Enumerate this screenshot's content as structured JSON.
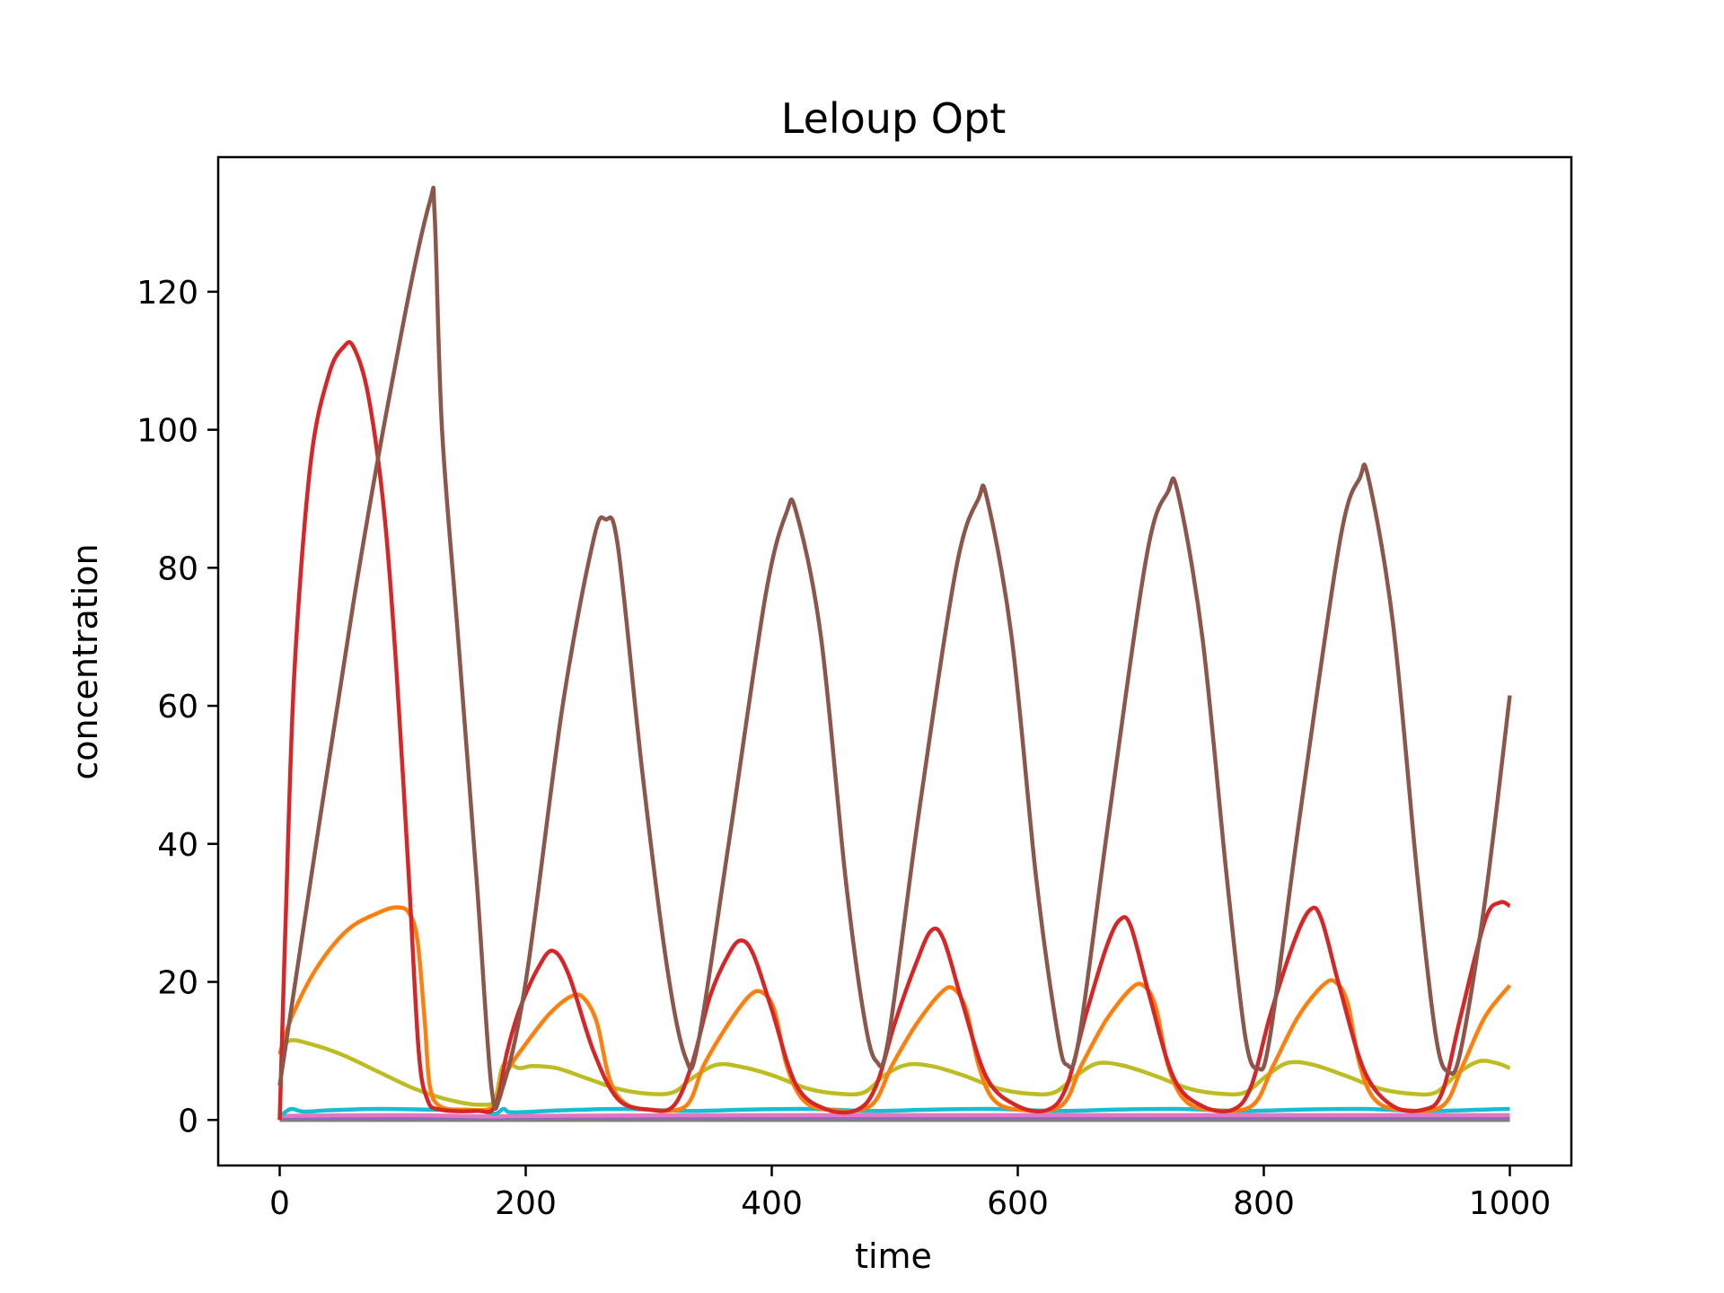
{
  "chart_data": {
    "type": "line",
    "title": "Leloup Opt",
    "xlabel": "time",
    "ylabel": "concentration",
    "xlim": [
      -50,
      1050
    ],
    "ylim": [
      -6.6,
      139.5
    ],
    "xticks": [
      0,
      200,
      400,
      600,
      800,
      1000
    ],
    "yticks": [
      0,
      20,
      40,
      60,
      80,
      100,
      120
    ],
    "grid": false,
    "legend": "none",
    "series": [
      {
        "color": "#8c564b",
        "points": [
          [
            0,
            5
          ],
          [
            60,
            75
          ],
          [
            100,
            115
          ],
          [
            122,
            133
          ],
          [
            126,
            131
          ],
          [
            132,
            100
          ],
          [
            145,
            70
          ],
          [
            160,
            35
          ],
          [
            172,
            5
          ],
          [
            180,
            4
          ],
          [
            200,
            20
          ],
          [
            230,
            60
          ],
          [
            255,
            84
          ],
          [
            265,
            87
          ],
          [
            275,
            83
          ],
          [
            295,
            50
          ],
          [
            315,
            22
          ],
          [
            330,
            9
          ],
          [
            340,
            11
          ],
          [
            365,
            40
          ],
          [
            395,
            76
          ],
          [
            412,
            88
          ],
          [
            420,
            88
          ],
          [
            440,
            70
          ],
          [
            460,
            35
          ],
          [
            475,
            15
          ],
          [
            485,
            8.5
          ],
          [
            495,
            12
          ],
          [
            520,
            45
          ],
          [
            550,
            80
          ],
          [
            568,
            90
          ],
          [
            575,
            90
          ],
          [
            595,
            70
          ],
          [
            615,
            35
          ],
          [
            632,
            13
          ],
          [
            640,
            8
          ],
          [
            650,
            12
          ],
          [
            675,
            45
          ],
          [
            705,
            82
          ],
          [
            722,
            91
          ],
          [
            730,
            91
          ],
          [
            750,
            70
          ],
          [
            770,
            35
          ],
          [
            785,
            12
          ],
          [
            795,
            7.5
          ],
          [
            805,
            12
          ],
          [
            830,
            45
          ],
          [
            862,
            84
          ],
          [
            878,
            93
          ],
          [
            885,
            93
          ],
          [
            905,
            72
          ],
          [
            925,
            35
          ],
          [
            940,
            12
          ],
          [
            950,
            7
          ],
          [
            960,
            10
          ],
          [
            980,
            32
          ],
          [
            1000,
            61.5
          ]
        ]
      },
      {
        "color": "#d62728",
        "points": [
          [
            0,
            0
          ],
          [
            5,
            30
          ],
          [
            12,
            65
          ],
          [
            25,
            95
          ],
          [
            40,
            108
          ],
          [
            52,
            112
          ],
          [
            60,
            112
          ],
          [
            72,
            105
          ],
          [
            85,
            88
          ],
          [
            95,
            65
          ],
          [
            105,
            35
          ],
          [
            113,
            10
          ],
          [
            120,
            3
          ],
          [
            130,
            1.5
          ],
          [
            160,
            1.3
          ],
          [
            175,
            2
          ],
          [
            185,
            10
          ],
          [
            195,
            16
          ],
          [
            210,
            22
          ],
          [
            222,
            24.5
          ],
          [
            235,
            21
          ],
          [
            255,
            10
          ],
          [
            275,
            3
          ],
          [
            300,
            1.5
          ],
          [
            320,
            2
          ],
          [
            335,
            8
          ],
          [
            350,
            18
          ],
          [
            365,
            24
          ],
          [
            375,
            26
          ],
          [
            385,
            24
          ],
          [
            400,
            16
          ],
          [
            420,
            5
          ],
          [
            445,
            1.5
          ],
          [
            470,
            1.5
          ],
          [
            485,
            5
          ],
          [
            500,
            14
          ],
          [
            518,
            23
          ],
          [
            530,
            27.5
          ],
          [
            540,
            26
          ],
          [
            555,
            17
          ],
          [
            575,
            6
          ],
          [
            600,
            2
          ],
          [
            625,
            1.5
          ],
          [
            640,
            5
          ],
          [
            655,
            15
          ],
          [
            672,
            25
          ],
          [
            683,
            29
          ],
          [
            692,
            28
          ],
          [
            707,
            18
          ],
          [
            727,
            6
          ],
          [
            750,
            2
          ],
          [
            775,
            1.5
          ],
          [
            790,
            5
          ],
          [
            805,
            15
          ],
          [
            825,
            26
          ],
          [
            838,
            30.5
          ],
          [
            847,
            29
          ],
          [
            862,
            19
          ],
          [
            882,
            7
          ],
          [
            905,
            2
          ],
          [
            930,
            1.5
          ],
          [
            945,
            4
          ],
          [
            960,
            15
          ],
          [
            980,
            29
          ],
          [
            992,
            31.5
          ],
          [
            1000,
            31
          ]
        ]
      },
      {
        "color": "#ff7f0e",
        "points": [
          [
            0,
            9.5
          ],
          [
            10,
            15
          ],
          [
            30,
            22
          ],
          [
            55,
            27.5
          ],
          [
            80,
            30
          ],
          [
            95,
            30.8
          ],
          [
            105,
            30
          ],
          [
            112,
            26
          ],
          [
            118,
            14
          ],
          [
            122,
            5
          ],
          [
            130,
            2
          ],
          [
            150,
            1.5
          ],
          [
            175,
            2
          ],
          [
            185,
            7
          ],
          [
            200,
            11
          ],
          [
            220,
            15.5
          ],
          [
            238,
            18
          ],
          [
            248,
            17.5
          ],
          [
            258,
            14
          ],
          [
            268,
            6
          ],
          [
            280,
            2.5
          ],
          [
            300,
            1.5
          ],
          [
            330,
            2
          ],
          [
            345,
            8
          ],
          [
            365,
            14
          ],
          [
            382,
            18
          ],
          [
            392,
            18.5
          ],
          [
            402,
            16
          ],
          [
            412,
            8
          ],
          [
            425,
            3
          ],
          [
            445,
            1.5
          ],
          [
            480,
            2
          ],
          [
            498,
            8
          ],
          [
            518,
            14
          ],
          [
            538,
            18.5
          ],
          [
            548,
            19
          ],
          [
            558,
            16
          ],
          [
            568,
            8
          ],
          [
            580,
            3
          ],
          [
            600,
            1.5
          ],
          [
            635,
            2
          ],
          [
            652,
            8
          ],
          [
            672,
            14.5
          ],
          [
            692,
            19
          ],
          [
            702,
            19.5
          ],
          [
            712,
            16.5
          ],
          [
            722,
            8
          ],
          [
            735,
            3
          ],
          [
            755,
            1.5
          ],
          [
            790,
            2
          ],
          [
            808,
            8
          ],
          [
            828,
            15
          ],
          [
            848,
            19.5
          ],
          [
            858,
            20
          ],
          [
            868,
            17
          ],
          [
            878,
            8
          ],
          [
            890,
            3
          ],
          [
            910,
            1.5
          ],
          [
            945,
            2
          ],
          [
            962,
            8
          ],
          [
            980,
            15
          ],
          [
            1000,
            19.5
          ]
        ]
      },
      {
        "color": "#bcbd22",
        "points": [
          [
            0,
            9.5
          ],
          [
            8,
            11.5
          ],
          [
            25,
            11
          ],
          [
            50,
            9.5
          ],
          [
            80,
            7
          ],
          [
            110,
            4.5
          ],
          [
            140,
            2.8
          ],
          [
            165,
            2.2
          ],
          [
            175,
            3
          ],
          [
            182,
            8
          ],
          [
            195,
            7.5
          ],
          [
            205,
            7.8
          ],
          [
            225,
            7.5
          ],
          [
            250,
            6
          ],
          [
            275,
            4.5
          ],
          [
            300,
            3.8
          ],
          [
            320,
            4
          ],
          [
            335,
            6
          ],
          [
            355,
            8
          ],
          [
            375,
            7.7
          ],
          [
            400,
            6.5
          ],
          [
            430,
            4.5
          ],
          [
            455,
            3.8
          ],
          [
            475,
            4
          ],
          [
            492,
            6.5
          ],
          [
            510,
            8
          ],
          [
            530,
            7.8
          ],
          [
            555,
            6.5
          ],
          [
            585,
            4.5
          ],
          [
            610,
            3.8
          ],
          [
            630,
            4
          ],
          [
            648,
            6.5
          ],
          [
            665,
            8.2
          ],
          [
            685,
            7.9
          ],
          [
            710,
            6.5
          ],
          [
            740,
            4.5
          ],
          [
            765,
            3.8
          ],
          [
            785,
            4
          ],
          [
            803,
            6.5
          ],
          [
            820,
            8.3
          ],
          [
            840,
            8
          ],
          [
            865,
            6.5
          ],
          [
            895,
            4.5
          ],
          [
            920,
            3.8
          ],
          [
            940,
            4
          ],
          [
            958,
            6.8
          ],
          [
            975,
            8.5
          ],
          [
            990,
            8.2
          ],
          [
            1000,
            7.5
          ]
        ]
      },
      {
        "color": "#17becf",
        "points": [
          [
            0,
            0.5
          ],
          [
            5,
            1.2
          ],
          [
            10,
            1.6
          ],
          [
            20,
            1.2
          ],
          [
            40,
            1.4
          ],
          [
            80,
            1.6
          ],
          [
            120,
            1.5
          ],
          [
            160,
            1.4
          ],
          [
            175,
            0.9
          ],
          [
            182,
            1.6
          ],
          [
            190,
            1.1
          ],
          [
            230,
            1.4
          ],
          [
            280,
            1.6
          ],
          [
            330,
            1.3
          ],
          [
            380,
            1.5
          ],
          [
            430,
            1.6
          ],
          [
            480,
            1.3
          ],
          [
            530,
            1.5
          ],
          [
            580,
            1.6
          ],
          [
            630,
            1.3
          ],
          [
            680,
            1.5
          ],
          [
            730,
            1.6
          ],
          [
            780,
            1.3
          ],
          [
            830,
            1.5
          ],
          [
            880,
            1.6
          ],
          [
            930,
            1.3
          ],
          [
            980,
            1.5
          ],
          [
            1000,
            1.6
          ]
        ]
      },
      {
        "color": "#e377c2",
        "points": [
          [
            0,
            0.6
          ],
          [
            100,
            0.7
          ],
          [
            175,
            0.5
          ],
          [
            200,
            0.6
          ],
          [
            400,
            0.7
          ],
          [
            600,
            0.7
          ],
          [
            800,
            0.7
          ],
          [
            1000,
            0.7
          ]
        ]
      },
      {
        "color": "#9467bd",
        "points": [
          [
            0,
            0.3
          ],
          [
            200,
            0.4
          ],
          [
            400,
            0.4
          ],
          [
            600,
            0.4
          ],
          [
            800,
            0.4
          ],
          [
            1000,
            0.4
          ]
        ]
      },
      {
        "color": "#7f7f7f",
        "points": [
          [
            0,
            0
          ],
          [
            200,
            0
          ],
          [
            400,
            0
          ],
          [
            600,
            0
          ],
          [
            800,
            0
          ],
          [
            1000,
            0
          ]
        ]
      }
    ]
  }
}
